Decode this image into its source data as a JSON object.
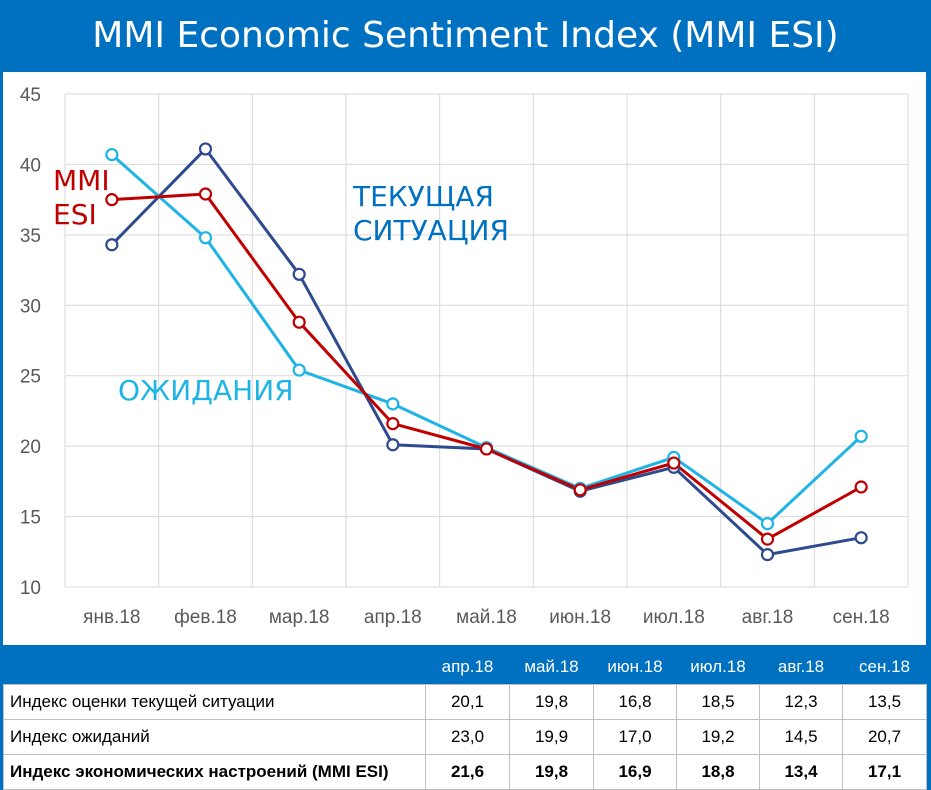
{
  "title": "MMI Economic Sentiment Index (MMI ESI)",
  "chart_data": {
    "type": "line",
    "title": "MMI Economic Sentiment Index (MMI ESI)",
    "categories": [
      "янв.18",
      "фев.18",
      "мар.18",
      "апр.18",
      "май.18",
      "июн.18",
      "июл.18",
      "авг.18",
      "сен.18"
    ],
    "ylim": [
      10,
      45
    ],
    "yticks": [
      10,
      15,
      20,
      25,
      30,
      35,
      40,
      45
    ],
    "grid": true,
    "series": [
      {
        "key": "current",
        "color": "#2f4b8f",
        "values": [
          34.3,
          41.1,
          32.2,
          20.1,
          19.8,
          16.8,
          18.5,
          12.3,
          13.5
        ]
      },
      {
        "key": "expect",
        "color": "#1eb4e6",
        "values": [
          40.7,
          34.8,
          25.4,
          23.0,
          19.9,
          17.0,
          19.2,
          14.5,
          20.7
        ]
      },
      {
        "key": "esi",
        "color": "#c00000",
        "values": [
          37.5,
          37.9,
          28.8,
          21.6,
          19.8,
          16.9,
          18.8,
          13.4,
          17.1
        ]
      }
    ],
    "annotations": [
      {
        "key": "esi",
        "lines": [
          "MMI",
          "ESI"
        ],
        "color": "#c00000"
      },
      {
        "key": "current",
        "lines": [
          "ТЕКУЩАЯ",
          "СИТУАЦИЯ"
        ],
        "color": "#0070c0"
      },
      {
        "key": "expect",
        "lines": [
          "ОЖИДАНИЯ"
        ],
        "color": "#1eb4e6"
      }
    ]
  },
  "table": {
    "headers": [
      "апр.18",
      "май.18",
      "июн.18",
      "июл.18",
      "авг.18",
      "сен.18"
    ],
    "rows": [
      {
        "label": "Индекс оценки текущей ситуации",
        "values": [
          "20,1",
          "19,8",
          "16,8",
          "18,5",
          "12,3",
          "13,5"
        ]
      },
      {
        "label": "Индекс ожиданий",
        "values": [
          "23,0",
          "19,9",
          "17,0",
          "19,2",
          "14,5",
          "20,7"
        ]
      },
      {
        "label": "Индекс экономических настроений (MMI ESI)",
        "values": [
          "21,6",
          "19,8",
          "16,9",
          "18,8",
          "13,4",
          "17,1"
        ]
      }
    ]
  }
}
